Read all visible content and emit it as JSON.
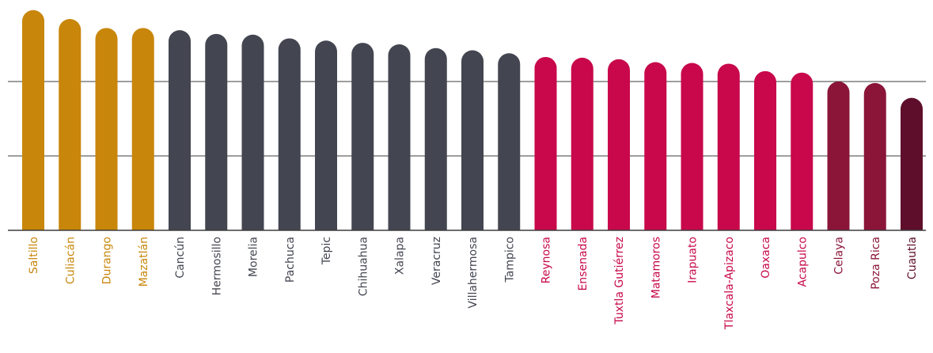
{
  "chart_data": {
    "type": "bar",
    "categories": [
      "Saltillo",
      "Culiacán",
      "Durango",
      "Mazatlán",
      "Cancún",
      "Hermosillo",
      "Morelia",
      "Pachuca",
      "Tepic",
      "Chihuahua",
      "Xalapa",
      "Veracruz",
      "Villahermosa",
      "Tampico",
      "Reynosa",
      "Ensenada",
      "Tuxtla Gutiérrez",
      "Matamoros",
      "Irapuato",
      "Tlaxcala-Apizaco",
      "Oaxaca",
      "Acapulco",
      "Celaya",
      "Poza Rica",
      "Cuautla"
    ],
    "values": [
      2.96,
      2.84,
      2.72,
      2.72,
      2.69,
      2.64,
      2.63,
      2.58,
      2.55,
      2.52,
      2.5,
      2.45,
      2.42,
      2.38,
      2.33,
      2.32,
      2.3,
      2.26,
      2.25,
      2.24,
      2.14,
      2.12,
      2.0,
      1.98,
      1.78
    ],
    "groups": [
      0,
      0,
      0,
      0,
      1,
      1,
      1,
      1,
      1,
      1,
      1,
      1,
      1,
      1,
      2,
      2,
      2,
      2,
      2,
      2,
      2,
      2,
      3,
      3,
      4
    ],
    "group_colors": [
      "#c8860a",
      "#434550",
      "#c8084a",
      "#8a1538",
      "#5e0e2a"
    ],
    "ylim": [
      0,
      3
    ],
    "gridlines": [
      1,
      2
    ],
    "grid": true,
    "title": "",
    "xlabel": "",
    "ylabel": ""
  }
}
